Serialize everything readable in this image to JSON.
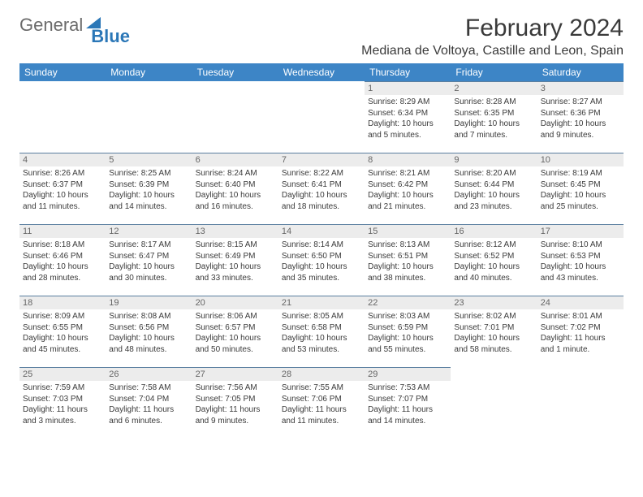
{
  "logo": {
    "text1": "General",
    "text2": "Blue"
  },
  "title": "February 2024",
  "location": "Mediana de Voltoya, Castille and Leon, Spain",
  "columns": [
    "Sunday",
    "Monday",
    "Tuesday",
    "Wednesday",
    "Thursday",
    "Friday",
    "Saturday"
  ],
  "colors": {
    "header_bg": "#3d85c6",
    "header_fg": "#ffffff",
    "daynum_bg": "#ececec",
    "border": "#5b7fa0",
    "text": "#3a3a3a",
    "logo_gray": "#6b6b6b",
    "logo_blue": "#2b77b7"
  },
  "weeks": [
    [
      null,
      null,
      null,
      null,
      {
        "n": "1",
        "sr": "8:29 AM",
        "ss": "6:34 PM",
        "dl": "10 hours and 5 minutes."
      },
      {
        "n": "2",
        "sr": "8:28 AM",
        "ss": "6:35 PM",
        "dl": "10 hours and 7 minutes."
      },
      {
        "n": "3",
        "sr": "8:27 AM",
        "ss": "6:36 PM",
        "dl": "10 hours and 9 minutes."
      }
    ],
    [
      {
        "n": "4",
        "sr": "8:26 AM",
        "ss": "6:37 PM",
        "dl": "10 hours and 11 minutes."
      },
      {
        "n": "5",
        "sr": "8:25 AM",
        "ss": "6:39 PM",
        "dl": "10 hours and 14 minutes."
      },
      {
        "n": "6",
        "sr": "8:24 AM",
        "ss": "6:40 PM",
        "dl": "10 hours and 16 minutes."
      },
      {
        "n": "7",
        "sr": "8:22 AM",
        "ss": "6:41 PM",
        "dl": "10 hours and 18 minutes."
      },
      {
        "n": "8",
        "sr": "8:21 AM",
        "ss": "6:42 PM",
        "dl": "10 hours and 21 minutes."
      },
      {
        "n": "9",
        "sr": "8:20 AM",
        "ss": "6:44 PM",
        "dl": "10 hours and 23 minutes."
      },
      {
        "n": "10",
        "sr": "8:19 AM",
        "ss": "6:45 PM",
        "dl": "10 hours and 25 minutes."
      }
    ],
    [
      {
        "n": "11",
        "sr": "8:18 AM",
        "ss": "6:46 PM",
        "dl": "10 hours and 28 minutes."
      },
      {
        "n": "12",
        "sr": "8:17 AM",
        "ss": "6:47 PM",
        "dl": "10 hours and 30 minutes."
      },
      {
        "n": "13",
        "sr": "8:15 AM",
        "ss": "6:49 PM",
        "dl": "10 hours and 33 minutes."
      },
      {
        "n": "14",
        "sr": "8:14 AM",
        "ss": "6:50 PM",
        "dl": "10 hours and 35 minutes."
      },
      {
        "n": "15",
        "sr": "8:13 AM",
        "ss": "6:51 PM",
        "dl": "10 hours and 38 minutes."
      },
      {
        "n": "16",
        "sr": "8:12 AM",
        "ss": "6:52 PM",
        "dl": "10 hours and 40 minutes."
      },
      {
        "n": "17",
        "sr": "8:10 AM",
        "ss": "6:53 PM",
        "dl": "10 hours and 43 minutes."
      }
    ],
    [
      {
        "n": "18",
        "sr": "8:09 AM",
        "ss": "6:55 PM",
        "dl": "10 hours and 45 minutes."
      },
      {
        "n": "19",
        "sr": "8:08 AM",
        "ss": "6:56 PM",
        "dl": "10 hours and 48 minutes."
      },
      {
        "n": "20",
        "sr": "8:06 AM",
        "ss": "6:57 PM",
        "dl": "10 hours and 50 minutes."
      },
      {
        "n": "21",
        "sr": "8:05 AM",
        "ss": "6:58 PM",
        "dl": "10 hours and 53 minutes."
      },
      {
        "n": "22",
        "sr": "8:03 AM",
        "ss": "6:59 PM",
        "dl": "10 hours and 55 minutes."
      },
      {
        "n": "23",
        "sr": "8:02 AM",
        "ss": "7:01 PM",
        "dl": "10 hours and 58 minutes."
      },
      {
        "n": "24",
        "sr": "8:01 AM",
        "ss": "7:02 PM",
        "dl": "11 hours and 1 minute."
      }
    ],
    [
      {
        "n": "25",
        "sr": "7:59 AM",
        "ss": "7:03 PM",
        "dl": "11 hours and 3 minutes."
      },
      {
        "n": "26",
        "sr": "7:58 AM",
        "ss": "7:04 PM",
        "dl": "11 hours and 6 minutes."
      },
      {
        "n": "27",
        "sr": "7:56 AM",
        "ss": "7:05 PM",
        "dl": "11 hours and 9 minutes."
      },
      {
        "n": "28",
        "sr": "7:55 AM",
        "ss": "7:06 PM",
        "dl": "11 hours and 11 minutes."
      },
      {
        "n": "29",
        "sr": "7:53 AM",
        "ss": "7:07 PM",
        "dl": "11 hours and 14 minutes."
      },
      null,
      null
    ]
  ],
  "labels": {
    "sunrise": "Sunrise: ",
    "sunset": "Sunset: ",
    "daylight": "Daylight: "
  }
}
